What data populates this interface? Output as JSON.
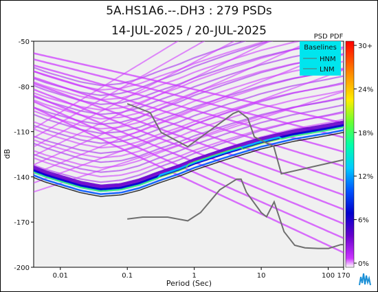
{
  "title_line1": "5A.HS1A6.--.DH3 : 279 PSDs",
  "title_line2": "14-JUL-2025 / 20-JUL-2025",
  "chart_data": {
    "type": "heatmap",
    "title": "5A.HS1A6.--.DH3 : 279 PSDs",
    "subtitle": "14-JUL-2025 / 20-JUL-2025",
    "xlabel": "Period (Sec)",
    "ylabel": "dB",
    "x_scale": "log",
    "xlim": [
      0.004,
      170
    ],
    "ylim": [
      -200,
      -50
    ],
    "x_ticks": [
      0.01,
      0.1,
      1,
      10,
      100,
      170
    ],
    "x_tick_labels": [
      "0.01",
      "0.1",
      "1",
      "10",
      "100",
      "170"
    ],
    "y_ticks": [
      -50,
      -80,
      -110,
      -140,
      -170,
      -200
    ],
    "y_tick_labels": [
      "-50",
      "-80",
      "-110",
      "-140",
      "-170",
      "-200"
    ],
    "colorbar": {
      "title": "PSD PDF",
      "tick_labels": [
        "30+",
        "24%",
        "18%",
        "12%",
        "6%",
        "0%"
      ],
      "colors": [
        "#ff0000",
        "#ff8800",
        "#ffee00",
        "#66ff33",
        "#00ffaa",
        "#00ccff",
        "#0055ff",
        "#0000cc",
        "#6600cc",
        "#cc33ff",
        "#ffffff"
      ]
    },
    "legend": {
      "title": "Baselines",
      "entries": [
        "HNM",
        "LNM"
      ],
      "placement": "top-right"
    },
    "baselines": [
      {
        "name": "HNM",
        "x": [
          0.1,
          0.22,
          0.32,
          0.8,
          3.8,
          4.6,
          6.3,
          7.9,
          15.4,
          20,
          176
        ],
        "y": [
          -91.5,
          -97.4,
          -110.5,
          -120,
          -98,
          -96.5,
          -101,
          -113.5,
          -120,
          -138,
          -128.5
        ]
      },
      {
        "name": "LNM",
        "x": [
          0.1,
          0.17,
          0.4,
          0.8,
          1.24,
          2.4,
          4.3,
          5,
          6,
          10,
          12,
          15.6,
          21.9,
          31.6,
          45,
          70,
          101,
          154,
          176
        ],
        "y": [
          -168,
          -166.7,
          -166.7,
          -169.2,
          -163.7,
          -148.6,
          -141.5,
          -141.5,
          -150.2,
          -163.7,
          -166.5,
          -156.6,
          -176.4,
          -185.4,
          -187.1,
          -187.5,
          -187.5,
          -185,
          -185
        ]
      }
    ],
    "density_ridge": {
      "x": [
        0.004,
        0.006,
        0.01,
        0.02,
        0.04,
        0.08,
        0.15,
        0.3,
        0.6,
        1,
        3,
        10,
        30,
        100,
        170
      ],
      "y": [
        -137,
        -140,
        -143,
        -147,
        -149.5,
        -148.5,
        -145.5,
        -140.5,
        -136,
        -132,
        -125,
        -118,
        -113,
        -109,
        -107
      ]
    }
  }
}
